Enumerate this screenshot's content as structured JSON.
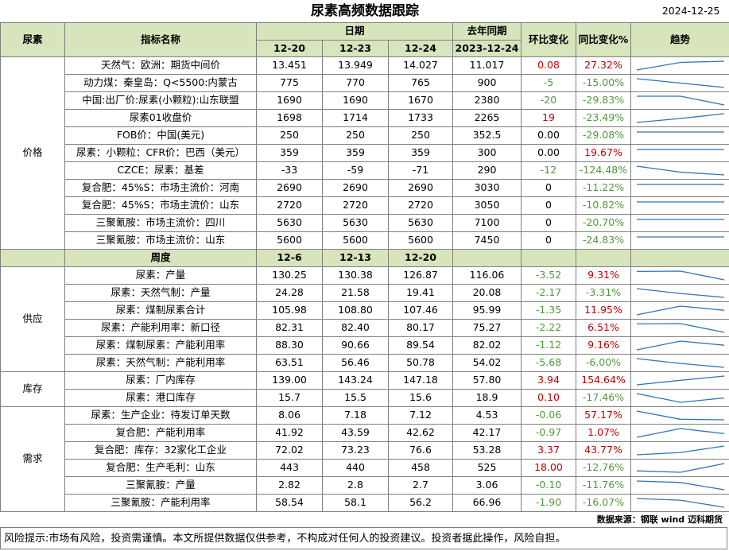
{
  "title": "尿素高频数据跟踪",
  "date": "2024-12-25",
  "headers": {
    "category": "尿素",
    "indicator": "指标名称",
    "period": "日期",
    "last_year": "去年同期",
    "mom": "环比变化",
    "yoy": "同比变化%",
    "trend": "趋势"
  },
  "daily_dates": [
    "12-20",
    "12-23",
    "12-24"
  ],
  "last_year_date": "2023-12-24",
  "weekly_header": {
    "label": "周度",
    "dates": [
      "12-6",
      "12-13",
      "12-20"
    ]
  },
  "sections": [
    {
      "category": "价格",
      "rows": [
        {
          "name": "天然气：欧洲：期货中间价",
          "v": [
            "13.451",
            "13.949",
            "14.027"
          ],
          "ly": "11.017",
          "mom": "0.08",
          "yoy": "27.32%",
          "trend": [
            13.451,
            13.949,
            14.027
          ]
        },
        {
          "name": "动力煤：秦皇岛：Q<5500:内蒙古",
          "v": [
            "775",
            "770",
            "765"
          ],
          "ly": "900",
          "mom": "-5",
          "yoy": "-15.00%",
          "trend": [
            775,
            770,
            765
          ]
        },
        {
          "name": "中国:出厂价:尿素(小颗粒):山东联盟",
          "v": [
            "1690",
            "1690",
            "1670"
          ],
          "ly": "2380",
          "mom": "-20",
          "yoy": "-29.83%",
          "trend": [
            1690,
            1690,
            1670
          ]
        },
        {
          "name": "尿素01收盘价",
          "v": [
            "1698",
            "1714",
            "1733"
          ],
          "ly": "2265",
          "mom": "19",
          "yoy": "-23.49%",
          "trend": [
            1698,
            1714,
            1733
          ]
        },
        {
          "name": "FOB价：中国(美元)",
          "v": [
            "250",
            "250",
            "250"
          ],
          "ly": "352.5",
          "mom": "0.00",
          "yoy": "-29.08%",
          "trend": [
            250,
            250,
            250
          ]
        },
        {
          "name": "尿素：小颗粒：CFR价：巴西（美元）",
          "v": [
            "359",
            "359",
            "359"
          ],
          "ly": "300",
          "mom": "0.00",
          "yoy": "19.67%",
          "trend": [
            359,
            359,
            359
          ]
        },
        {
          "name": "CZCE：尿素：基差",
          "v": [
            "-33",
            "-59",
            "-71"
          ],
          "ly": "290",
          "mom": "-12",
          "yoy": "-124.48%",
          "trend": [
            -33,
            -59,
            -71
          ]
        },
        {
          "name": "复合肥：45%S：市场主流价：河南",
          "v": [
            "2690",
            "2690",
            "2690"
          ],
          "ly": "3030",
          "mom": "0",
          "yoy": "-11.22%",
          "trend": [
            2690,
            2690,
            2690
          ]
        },
        {
          "name": "复合肥：45%S：市场主流价：山东",
          "v": [
            "2720",
            "2720",
            "2720"
          ],
          "ly": "3050",
          "mom": "0",
          "yoy": "-10.82%",
          "trend": [
            2720,
            2720,
            2720
          ]
        },
        {
          "name": "三聚氰胺：市场主流价：四川",
          "v": [
            "5630",
            "5630",
            "5630"
          ],
          "ly": "7100",
          "mom": "0",
          "yoy": "-20.70%",
          "trend": [
            5630,
            5630,
            5630
          ]
        },
        {
          "name": "三聚氰胺：市场主流价：山东",
          "v": [
            "5600",
            "5600",
            "5600"
          ],
          "ly": "7450",
          "mom": "0",
          "yoy": "-24.83%",
          "trend": [
            5600,
            5600,
            5600
          ]
        }
      ]
    },
    {
      "category": "供应",
      "rows": [
        {
          "name": "尿素：产量",
          "v": [
            "130.25",
            "130.38",
            "126.87"
          ],
          "ly": "116.06",
          "mom": "-3.52",
          "yoy": "9.31%",
          "trend": [
            130.25,
            130.38,
            126.87
          ]
        },
        {
          "name": "尿素：天然气制：产量",
          "v": [
            "24.28",
            "21.58",
            "19.41"
          ],
          "ly": "20.08",
          "mom": "-2.17",
          "yoy": "-3.31%",
          "trend": [
            24.28,
            21.58,
            19.41
          ]
        },
        {
          "name": "尿素：煤制尿素合计",
          "v": [
            "105.98",
            "108.80",
            "107.46"
          ],
          "ly": "95.99",
          "mom": "-1.35",
          "yoy": "11.95%",
          "trend": [
            105.98,
            108.8,
            107.46
          ]
        },
        {
          "name": "尿素：产能利用率：新口径",
          "v": [
            "82.31",
            "82.40",
            "80.17"
          ],
          "ly": "75.27",
          "mom": "-2.22",
          "yoy": "6.51%",
          "trend": [
            82.31,
            82.4,
            80.17
          ]
        },
        {
          "name": "尿素：煤制尿素：产能利用率",
          "v": [
            "88.30",
            "90.66",
            "89.54"
          ],
          "ly": "82.02",
          "mom": "-1.12",
          "yoy": "9.16%",
          "trend": [
            88.3,
            90.66,
            89.54
          ]
        },
        {
          "name": "尿素：天然气制：产能利用率",
          "v": [
            "63.51",
            "56.46",
            "50.78"
          ],
          "ly": "54.02",
          "mom": "-5.68",
          "yoy": "-6.00%",
          "trend": [
            63.51,
            56.46,
            50.78
          ]
        }
      ]
    },
    {
      "category": "库存",
      "rows": [
        {
          "name": "尿素：厂内库存",
          "v": [
            "139.00",
            "143.24",
            "147.18"
          ],
          "ly": "57.80",
          "mom": "3.94",
          "yoy": "154.64%",
          "trend": [
            139.0,
            143.24,
            147.18
          ]
        },
        {
          "name": "尿素：港口库存",
          "v": [
            "15.7",
            "15.5",
            "15.6"
          ],
          "ly": "18.9",
          "mom": "0.10",
          "yoy": "-17.46%",
          "trend": [
            15.7,
            15.5,
            15.6
          ]
        }
      ]
    },
    {
      "category": "需求",
      "rows": [
        {
          "name": "尿素：生产企业：待发订单天数",
          "v": [
            "8.06",
            "7.18",
            "7.12"
          ],
          "ly": "4.53",
          "mom": "-0.06",
          "yoy": "57.17%",
          "trend": [
            8.06,
            7.18,
            7.12
          ]
        },
        {
          "name": "复合肥：产能利用率",
          "v": [
            "41.92",
            "43.59",
            "42.62"
          ],
          "ly": "42.17",
          "mom": "-0.97",
          "yoy": "1.07%",
          "trend": [
            41.92,
            43.59,
            42.62
          ]
        },
        {
          "name": "复合肥：库存：32家化工企业",
          "v": [
            "72.02",
            "73.23",
            "76.6"
          ],
          "ly": "53.28",
          "mom": "3.37",
          "yoy": "43.77%",
          "trend": [
            72.02,
            73.23,
            76.6
          ]
        },
        {
          "name": "复合肥：生产毛利：山东",
          "v": [
            "443",
            "440",
            "458"
          ],
          "ly": "525",
          "mom": "18.00",
          "yoy": "-12.76%",
          "trend": [
            443,
            440,
            458
          ]
        },
        {
          "name": "三聚氰胺：产量",
          "v": [
            "2.82",
            "2.8",
            "2.7"
          ],
          "ly": "3.06",
          "mom": "-0.10",
          "yoy": "-11.76%",
          "trend": [
            2.82,
            2.8,
            2.7
          ]
        },
        {
          "name": "三聚氰胺：产能利用率",
          "v": [
            "58.54",
            "58.1",
            "56.2"
          ],
          "ly": "66.96",
          "mom": "-1.90",
          "yoy": "-16.07%",
          "trend": [
            58.54,
            58.1,
            56.2
          ]
        }
      ]
    }
  ],
  "source": "数据来源：钢联 wind 迈科期货",
  "risk": "风险提示:市场有风险，投资需谨慎。本文所提供数据仅供参考，不构成对任何人的投资建议。投资者据此操作，风险自担。",
  "colors": {
    "header_bg": "#d8e4bc",
    "up": "#c00000",
    "down": "#4e9a3a",
    "sparkline": "#2e75b6",
    "border": "#7f7f7f"
  }
}
